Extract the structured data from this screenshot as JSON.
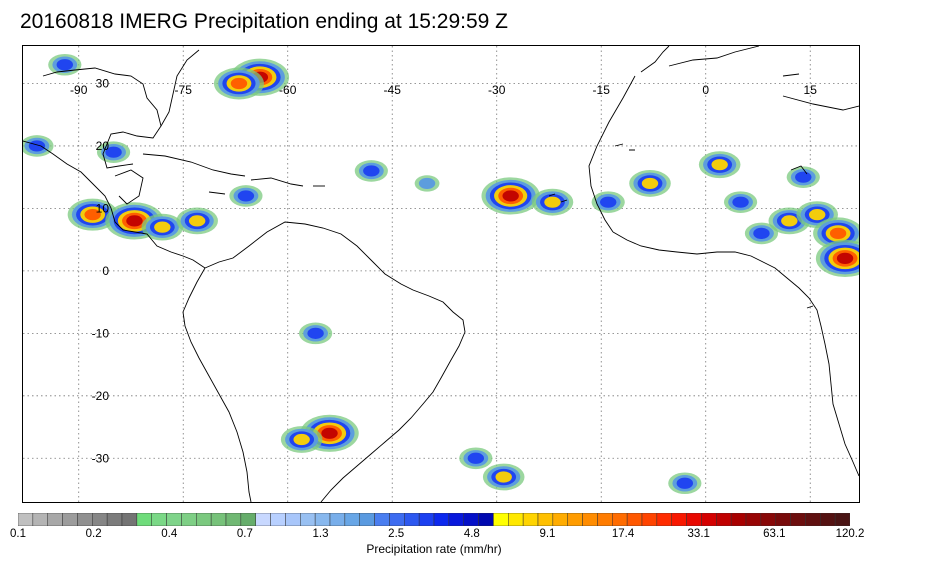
{
  "title": "20160818 IMERG Precipitation ending at 15:29:59 Z",
  "map": {
    "projection": "equirectangular",
    "lon_range": [
      -98,
      22
    ],
    "lat_range": [
      -37,
      36
    ],
    "lon_ticks": [
      "-90",
      "-75",
      "-60",
      "-45",
      "-30",
      "-15",
      "0",
      "15"
    ],
    "lon_tick_values": [
      -90,
      -75,
      -60,
      -45,
      -30,
      -15,
      0,
      15
    ],
    "lat_ticks": [
      "30",
      "20",
      "10",
      "0",
      "-10",
      "-20",
      "-30"
    ],
    "lat_tick_values": [
      30,
      20,
      10,
      0,
      -10,
      -20,
      -30
    ],
    "gridlines": "dotted",
    "coastline_color": "#000000"
  },
  "colorbar": {
    "title": "Precipitation rate (mm/hr)",
    "tick_labels": [
      "0.1",
      "0.2",
      "0.4",
      "0.7",
      "1.3",
      "2.5",
      "4.8",
      "9.1",
      "17.4",
      "33.1",
      "63.1",
      "120.2"
    ],
    "colors": [
      "#c0c0c0",
      "#b4b4b4",
      "#a8a8a8",
      "#9c9c9c",
      "#909090",
      "#868686",
      "#7c7c7c",
      "#747474",
      "#6fdc7b",
      "#7ad886",
      "#7fd48a",
      "#7ecf85",
      "#7bc97f",
      "#77c27a",
      "#70b873",
      "#66ad6b",
      "#c8d8ff",
      "#b8d0ff",
      "#a8c6fa",
      "#98c0f2",
      "#88b8ee",
      "#78aeea",
      "#68a6e6",
      "#5a9ae0",
      "#4a7ef0",
      "#3d6cf0",
      "#2d58f0",
      "#1c40f0",
      "#0c28ee",
      "#0818dc",
      "#0410c8",
      "#0008b0",
      "#ffff00",
      "#ffe800",
      "#ffd400",
      "#ffc000",
      "#ffac00",
      "#ff9c00",
      "#ff8c00",
      "#ff7c00",
      "#ff6c00",
      "#ff5800",
      "#ff4400",
      "#ff2c00",
      "#f81800",
      "#e80800",
      "#d40000",
      "#c00000",
      "#a80000",
      "#980404",
      "#880808",
      "#780a0a",
      "#6c0e0e",
      "#601010",
      "#541212",
      "#4a1414"
    ]
  },
  "precipitation_cells": [
    {
      "lon": -64,
      "lat": 31,
      "intensity": 5
    },
    {
      "lon": -67,
      "lat": 30,
      "intensity": 4
    },
    {
      "lon": -88,
      "lat": 9,
      "intensity": 4
    },
    {
      "lon": -82,
      "lat": 8,
      "intensity": 5
    },
    {
      "lon": -78,
      "lat": 7,
      "intensity": 3
    },
    {
      "lon": -73,
      "lat": 8,
      "intensity": 3
    },
    {
      "lon": -66,
      "lat": 12,
      "intensity": 2
    },
    {
      "lon": -48,
      "lat": 16,
      "intensity": 2
    },
    {
      "lon": -28,
      "lat": 12,
      "intensity": 5
    },
    {
      "lon": -22,
      "lat": 11,
      "intensity": 3
    },
    {
      "lon": -14,
      "lat": 11,
      "intensity": 2
    },
    {
      "lon": -8,
      "lat": 14,
      "intensity": 3
    },
    {
      "lon": 2,
      "lat": 17,
      "intensity": 3
    },
    {
      "lon": 5,
      "lat": 11,
      "intensity": 2
    },
    {
      "lon": 12,
      "lat": 8,
      "intensity": 3
    },
    {
      "lon": 16,
      "lat": 9,
      "intensity": 3
    },
    {
      "lon": 19,
      "lat": 6,
      "intensity": 4
    },
    {
      "lon": 20,
      "lat": 2,
      "intensity": 5
    },
    {
      "lon": 8,
      "lat": 6,
      "intensity": 2
    },
    {
      "lon": -54,
      "lat": -26,
      "intensity": 5
    },
    {
      "lon": -58,
      "lat": -27,
      "intensity": 3
    },
    {
      "lon": -29,
      "lat": -33,
      "intensity": 3
    },
    {
      "lon": -33,
      "lat": -30,
      "intensity": 2
    },
    {
      "lon": -56,
      "lat": -10,
      "intensity": 2
    },
    {
      "lon": -96,
      "lat": 20,
      "intensity": 2
    },
    {
      "lon": -85,
      "lat": 19,
      "intensity": 2
    },
    {
      "lon": -3,
      "lat": -34,
      "intensity": 2
    },
    {
      "lon": -92,
      "lat": 33,
      "intensity": 2
    },
    {
      "lon": -40,
      "lat": 14,
      "intensity": 1
    },
    {
      "lon": 14,
      "lat": 15,
      "intensity": 2
    }
  ]
}
